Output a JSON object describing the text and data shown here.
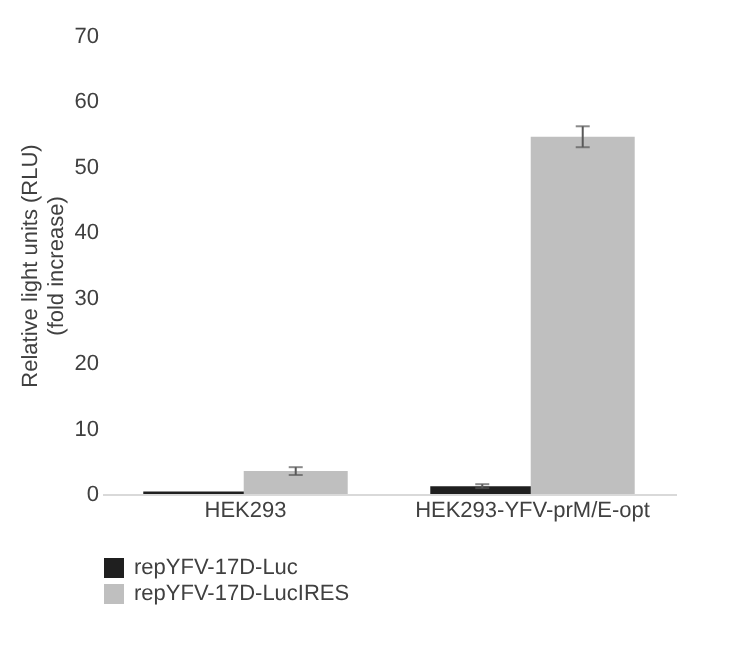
{
  "chart_data": {
    "type": "bar",
    "ylabel": "Relative light units (RLU)\n(fold increase)",
    "categories": [
      "HEK293",
      "HEK293-YFV-prM/E-opt"
    ],
    "series": [
      {
        "name": "repYFV-17D-Luc",
        "color": "#1f1f1f",
        "values": [
          0.4,
          1.2
        ],
        "errors": [
          null,
          0.3
        ]
      },
      {
        "name": "repYFV-17D-LucIRES",
        "color": "#bfbfbf",
        "values": [
          3.5,
          54.6
        ],
        "errors": [
          0.6,
          1.6
        ]
      }
    ],
    "ylim": [
      0,
      70
    ],
    "yticks": [
      0,
      10,
      20,
      30,
      40,
      50,
      60,
      70
    ],
    "grid": false,
    "legend": "bottom"
  }
}
